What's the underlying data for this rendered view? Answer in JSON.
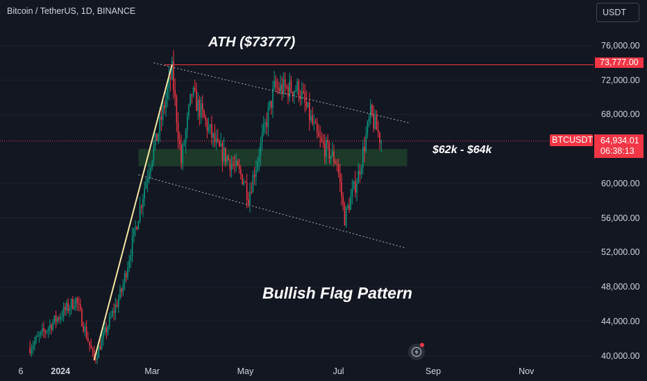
{
  "header": {
    "symbol_title": "Bitcoin / TetherUS, 1D, BINANCE",
    "currency": "USDT"
  },
  "annotations": {
    "ath_label": "ATH ($73777)",
    "zone_label": "$62k - $64k",
    "pattern_label": "Bullish Flag Pattern"
  },
  "price_tags": {
    "ath_value": "73,777.00",
    "symbol": "BTCUSDT",
    "last_price": "64,934.01",
    "countdown": "06:38:13"
  },
  "icons": {
    "flash": "flash-icon"
  },
  "colors": {
    "up": "#089981",
    "down": "#f23645",
    "zone": "#1e3d2a",
    "background": "#131722",
    "trend": "#f5e7a3"
  },
  "chart_data": {
    "type": "candlestick",
    "title": "Bitcoin / TetherUS, 1D, BINANCE",
    "y_ticks": [
      {
        "value": 76000,
        "label": "76,000.00"
      },
      {
        "value": 72000,
        "label": "72,000.00"
      },
      {
        "value": 68000,
        "label": "68,000.00"
      },
      {
        "value": 60000,
        "label": "60,000.00"
      },
      {
        "value": 56000,
        "label": "56,000.00"
      },
      {
        "value": 52000,
        "label": "52,000.00"
      },
      {
        "value": 48000,
        "label": "48,000.00"
      },
      {
        "value": 44000,
        "label": "44,000.00"
      },
      {
        "value": 40000,
        "label": "40,000.00"
      }
    ],
    "x_ticks": [
      {
        "label": "6",
        "date": "2023-12-06"
      },
      {
        "label": "2024",
        "date": "2024-01-01",
        "bold": true
      },
      {
        "label": "Mar",
        "date": "2024-03-01"
      },
      {
        "label": "May",
        "date": "2024-05-01"
      },
      {
        "label": "Jul",
        "date": "2024-07-01"
      },
      {
        "label": "Sep",
        "date": "2024-09-01"
      },
      {
        "label": "Nov",
        "date": "2024-11-01"
      }
    ],
    "anchor_points": [
      {
        "date": "2023-12-12",
        "price": 41000
      },
      {
        "date": "2023-12-25",
        "price": 43500
      },
      {
        "date": "2024-01-11",
        "price": 46500
      },
      {
        "date": "2024-01-23",
        "price": 39500
      },
      {
        "date": "2024-02-10",
        "price": 47500
      },
      {
        "date": "2024-02-28",
        "price": 62000
      },
      {
        "date": "2024-03-05",
        "price": 66000
      },
      {
        "date": "2024-03-14",
        "price": 73000
      },
      {
        "date": "2024-03-20",
        "price": 62500
      },
      {
        "date": "2024-03-27",
        "price": 70500
      },
      {
        "date": "2024-04-13",
        "price": 64000
      },
      {
        "date": "2024-04-19",
        "price": 63000
      },
      {
        "date": "2024-04-30",
        "price": 60500
      },
      {
        "date": "2024-05-03",
        "price": 58500
      },
      {
        "date": "2024-05-20",
        "price": 71000
      },
      {
        "date": "2024-06-05",
        "price": 71000
      },
      {
        "date": "2024-06-18",
        "price": 65000
      },
      {
        "date": "2024-06-30",
        "price": 62500
      },
      {
        "date": "2024-07-05",
        "price": 56000
      },
      {
        "date": "2024-07-14",
        "price": 61000
      },
      {
        "date": "2024-07-22",
        "price": 68000
      },
      {
        "date": "2024-07-29",
        "price": 64934
      }
    ],
    "horizontal_lines": [
      {
        "label": "ATH",
        "price": 73777
      }
    ],
    "support_zone": {
      "low": 62000,
      "high": 64000,
      "start_date": "2024-02-21",
      "end_date": "2024-08-15"
    },
    "flag_channel": {
      "upper": [
        {
          "date": "2024-03-02",
          "price": 74000
        },
        {
          "date": "2024-08-17",
          "price": 67000
        }
      ],
      "lower": [
        {
          "date": "2024-02-21",
          "price": 61000
        },
        {
          "date": "2024-08-14",
          "price": 52500
        }
      ]
    },
    "trend_line": [
      {
        "date": "2024-01-23",
        "price": 39500
      },
      {
        "date": "2024-03-14",
        "price": 73800
      }
    ],
    "last_price": 64934.01,
    "ylim": [
      39500,
      78000
    ]
  }
}
